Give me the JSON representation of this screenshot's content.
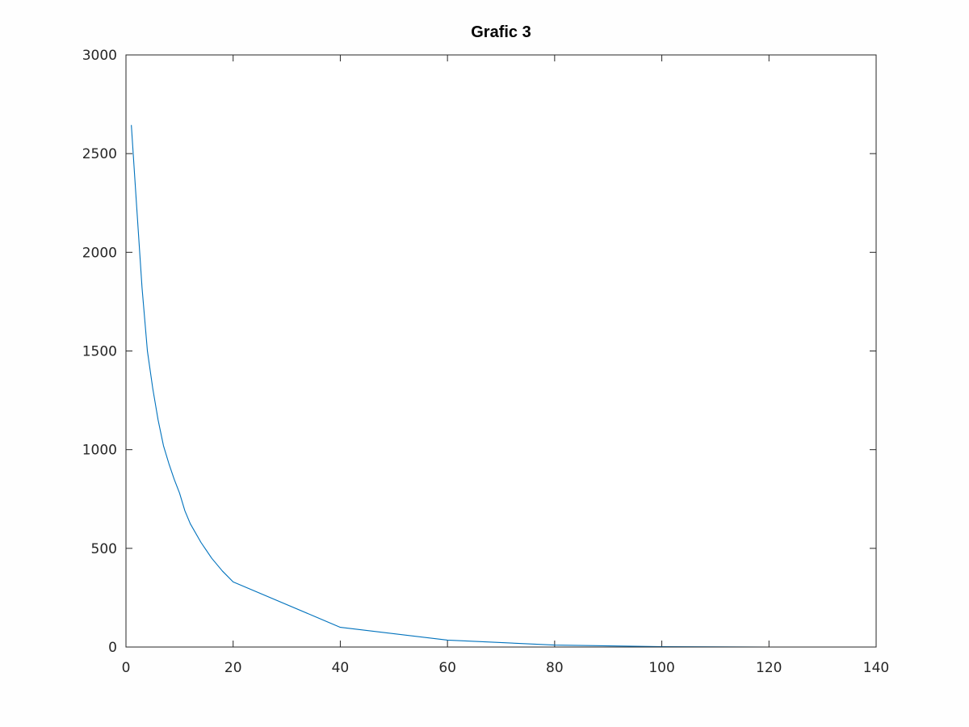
{
  "chart_data": {
    "type": "line",
    "title": "Grafic 3",
    "xlabel": "",
    "ylabel": "",
    "xlim": [
      0,
      140
    ],
    "ylim": [
      0,
      3000
    ],
    "xticks": [
      0,
      20,
      40,
      60,
      80,
      100,
      120,
      140
    ],
    "yticks": [
      0,
      500,
      1000,
      1500,
      2000,
      2500,
      3000
    ],
    "xtick_labels": [
      "0",
      "20",
      "40",
      "60",
      "80",
      "100",
      "120",
      "140"
    ],
    "ytick_labels": [
      "0",
      "500",
      "1000",
      "1500",
      "2000",
      "2500",
      "3000"
    ],
    "grid": false,
    "legend": "none",
    "series": [
      {
        "color": "#0072bd",
        "x": [
          1,
          2,
          3,
          4,
          5,
          6,
          7,
          8,
          9,
          10,
          11,
          12,
          14,
          16,
          18,
          20,
          40,
          60,
          80,
          100,
          120,
          130
        ],
        "y": [
          2645,
          2230,
          1820,
          1500,
          1310,
          1150,
          1020,
          930,
          850,
          780,
          690,
          625,
          530,
          450,
          385,
          330,
          100,
          35,
          10,
          2,
          0,
          0
        ]
      }
    ]
  }
}
